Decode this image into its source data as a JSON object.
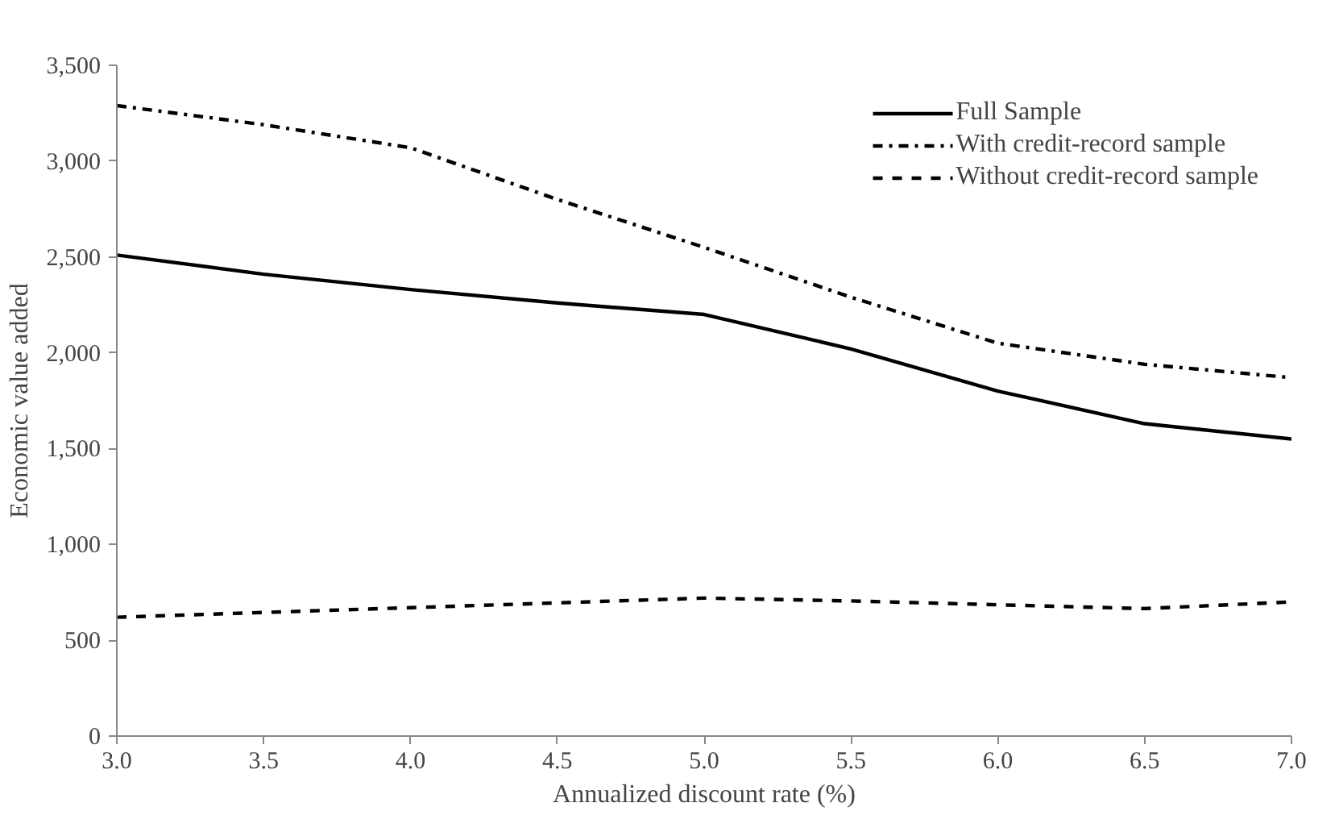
{
  "chart_data": {
    "type": "line",
    "xlabel": "Annualized discount rate (%)",
    "ylabel": "Economic value added",
    "x": [
      3.0,
      3.5,
      4.0,
      4.5,
      5.0,
      5.5,
      6.0,
      6.5,
      7.0
    ],
    "xlim": [
      3.0,
      7.0
    ],
    "xticks": [
      {
        "value": 3.0,
        "label": "3.0"
      },
      {
        "value": 3.5,
        "label": "3.5"
      },
      {
        "value": 4.0,
        "label": "4.0"
      },
      {
        "value": 4.5,
        "label": "4.5"
      },
      {
        "value": 5.0,
        "label": "5.0"
      },
      {
        "value": 5.5,
        "label": "5.5"
      },
      {
        "value": 6.0,
        "label": "6.0"
      },
      {
        "value": 6.5,
        "label": "6.5"
      },
      {
        "value": 7.0,
        "label": "7.0"
      }
    ],
    "ylim": [
      0,
      3500
    ],
    "yticks": [
      0,
      500,
      {
        "value": 1000,
        "label": "1,000"
      },
      {
        "value": 1500,
        "label": "1,500"
      },
      {
        "value": 2000,
        "label": "2,000"
      },
      {
        "value": 2500,
        "label": "2,500"
      },
      {
        "value": 3000,
        "label": "3,000"
      },
      {
        "value": 3500,
        "label": "3,500"
      }
    ],
    "grid": false,
    "legend": "top right",
    "series": [
      {
        "name": "Full Sample",
        "color": "#000000",
        "line_style": "solid",
        "values": [
          2510,
          2410,
          2330,
          2260,
          2200,
          2020,
          1800,
          1630,
          1550
        ]
      },
      {
        "name": "With credit-record sample",
        "color": "#000000",
        "line_style": "dashdot",
        "values": [
          3290,
          3190,
          3070,
          2800,
          2550,
          2290,
          2050,
          1940,
          1870
        ]
      },
      {
        "name": "Without credit-record sample",
        "color": "#000000",
        "line_style": "dashed",
        "values": [
          620,
          645,
          670,
          695,
          720,
          705,
          685,
          665,
          700
        ]
      }
    ]
  }
}
